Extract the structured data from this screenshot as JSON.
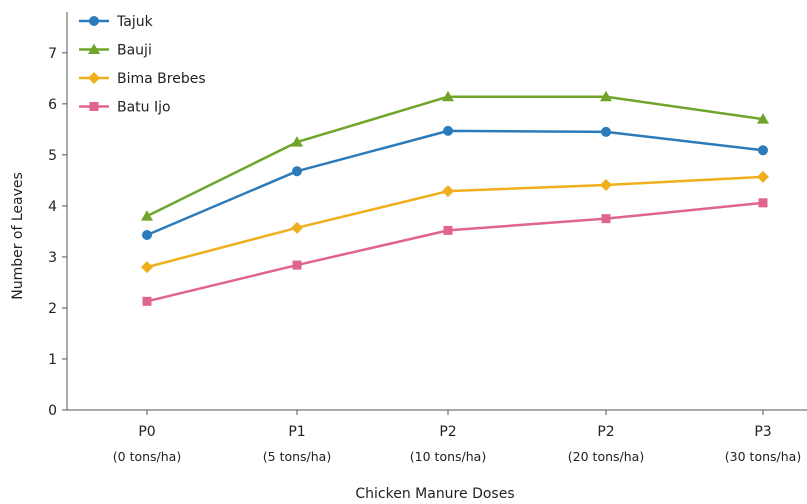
{
  "chart_data": {
    "type": "line",
    "title": "",
    "xlabel": "Chicken Manure Doses",
    "ylabel": "Number of Leaves",
    "categories": [
      "P0",
      "P1",
      "P2",
      "P2",
      "P3"
    ],
    "category_sublabels": [
      "(0 tons/ha)",
      "(5 tons/ha)",
      "(10 tons/ha)",
      "(20 tons/ha)",
      "(30 tons/ha)"
    ],
    "ylim": [
      0,
      7.8
    ],
    "yticks": [
      0,
      1,
      2,
      3,
      4,
      5,
      6,
      7
    ],
    "grid": false,
    "legend_position": "top-left",
    "series": [
      {
        "name": "Tajuk",
        "color": "#2b7bba",
        "marker": "circle",
        "values": [
          3.43,
          4.68,
          5.47,
          5.45,
          5.09
        ]
      },
      {
        "name": "Bauji",
        "color": "#6fa52b",
        "marker": "triangle",
        "values": [
          3.8,
          5.25,
          6.14,
          6.14,
          5.7
        ]
      },
      {
        "name": "Bima Brebes",
        "color": "#f0b01e",
        "marker": "diamond",
        "values": [
          2.8,
          3.57,
          4.29,
          4.41,
          4.57
        ]
      },
      {
        "name": "Batu Ijo",
        "color": "#e0648c",
        "marker": "square",
        "values": [
          2.13,
          2.84,
          3.52,
          3.75,
          4.06
        ]
      }
    ]
  }
}
